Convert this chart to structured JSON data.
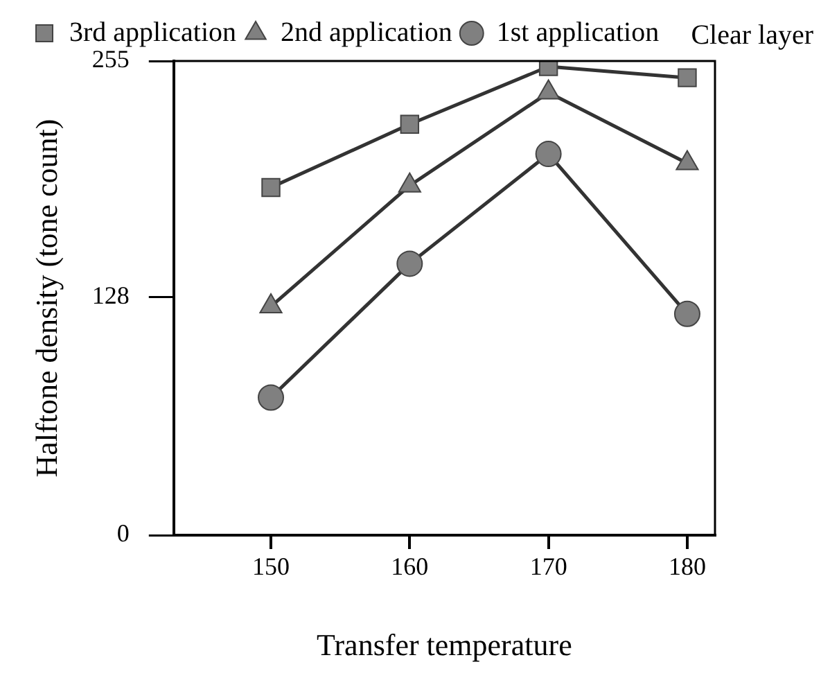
{
  "chart_data": {
    "type": "line",
    "xlabel": "Transfer temperature",
    "ylabel": "Halftone density (tone count)",
    "annotations": [
      "Clear layer"
    ],
    "x": [
      150,
      160,
      170,
      180
    ],
    "xlim": [
      143,
      182
    ],
    "xticks": [
      150,
      160,
      170,
      180
    ],
    "ylim": [
      0,
      255
    ],
    "yticks": [
      0,
      128,
      255
    ],
    "grid": false,
    "legend": "top",
    "series": [
      {
        "name": "3rd application",
        "color": "#808080",
        "marker": "square",
        "values": [
          187,
          221,
          252,
          246
        ]
      },
      {
        "name": "2nd application",
        "color": "#808080",
        "marker": "triangle",
        "values": [
          123,
          188,
          238,
          200
        ]
      },
      {
        "name": "1st application",
        "color": "#808080",
        "marker": "circle",
        "values": [
          74,
          146,
          205,
          119
        ]
      }
    ]
  }
}
